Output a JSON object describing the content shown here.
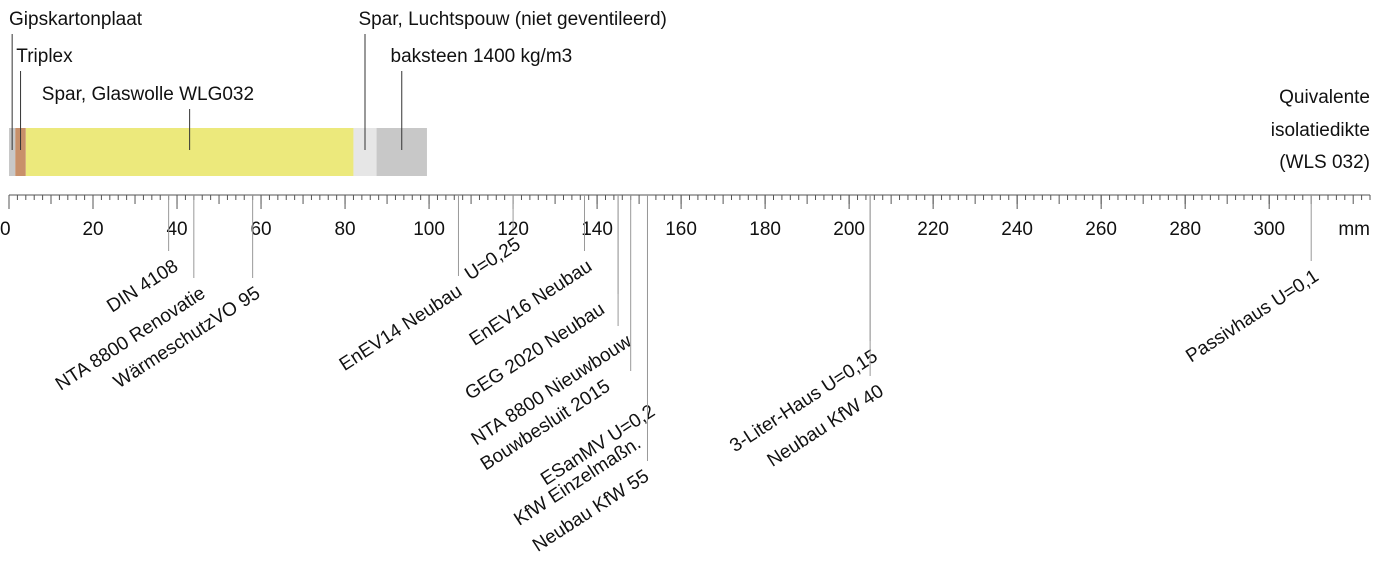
{
  "scale": {
    "unit": "mm",
    "xlim": [
      0,
      324
    ],
    "xticks": [
      0,
      20,
      40,
      60,
      80,
      100,
      120,
      140,
      160,
      180,
      200,
      220,
      240,
      260,
      280,
      300
    ]
  },
  "side_label": [
    "Quivalente",
    "isolatiedikte",
    "(WLS 032)"
  ],
  "layers": [
    {
      "name": "Gipskartonplaat",
      "thickness": 1.5,
      "color": "#c8c8c8"
    },
    {
      "name": "Triplex",
      "thickness": 2.5,
      "color": "#c8906a"
    },
    {
      "name": "Spar, Glaswolle WLG032",
      "thickness": 78,
      "color": "#ece97c"
    },
    {
      "name": "Spar, Luchtspouw (niet geventileerd)",
      "thickness": 5.5,
      "color": "#e6e6e6"
    },
    {
      "name": "baksteen 1400 kg/m3",
      "thickness": 12,
      "color": "#c8c8c8"
    }
  ],
  "markers": [
    {
      "label": "DIN 4108",
      "value": 38
    },
    {
      "label": "NTA 8800 Renovatie",
      "value": 44
    },
    {
      "label": "WärmeschutzVO 95",
      "value": 58
    },
    {
      "label": "EnEV14 Neubau",
      "value": 107
    },
    {
      "label": "U=0,25",
      "value": 120
    },
    {
      "label": "EnEV16 Neubau",
      "value": 137
    },
    {
      "label": "GEG 2020 Neubau",
      "value": 145
    },
    {
      "label": "NTA 8800 Nieuwbouw",
      "value": 145
    },
    {
      "label": "Bouwbesluit 2015",
      "value": 148
    },
    {
      "label": "ESanMV U=0,2",
      "value": 152
    },
    {
      "label": "KfW Einzelmaßn.",
      "value": 152
    },
    {
      "label": "Neubau KfW 55",
      "value": 152
    },
    {
      "label": "3-Liter-Haus U=0,15",
      "value": 205
    },
    {
      "label": "Neubau KfW 40",
      "value": 205
    },
    {
      "label": "Passivhaus U=0,1",
      "value": 310
    }
  ]
}
